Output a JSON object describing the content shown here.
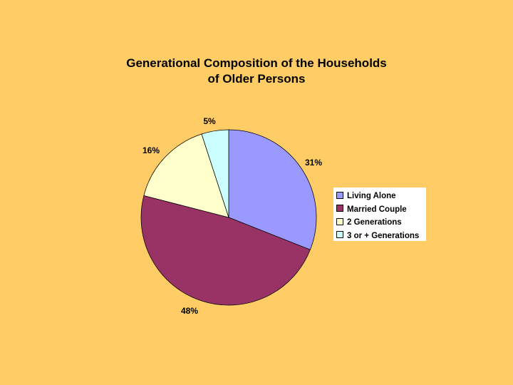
{
  "chart_data": {
    "type": "pie",
    "title": [
      "Generational Composition of the Households",
      "of Older Persons"
    ],
    "legend_position": "right",
    "slices": [
      {
        "name": "Living Alone",
        "value": 31,
        "label": "31%",
        "color": "#9999FF"
      },
      {
        "name": "Married Couple",
        "value": 48,
        "label": "48%",
        "color": "#993366"
      },
      {
        "name": "2 Generations",
        "value": 16,
        "label": "16%",
        "color": "#FFFFCC"
      },
      {
        "name": "3 or + Generations",
        "value": 5,
        "label": "5%",
        "color": "#CCFFFF"
      }
    ]
  }
}
